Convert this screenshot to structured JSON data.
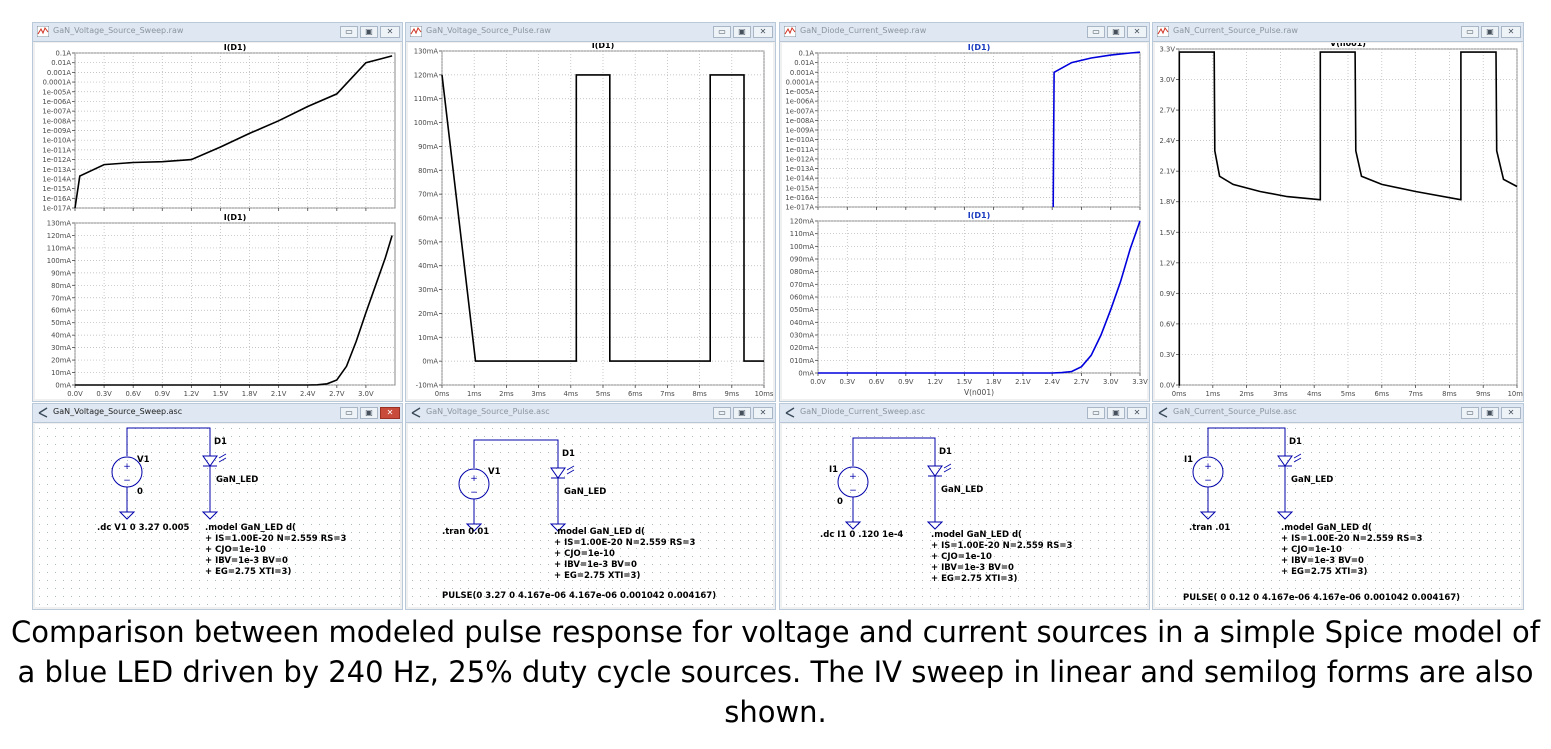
{
  "colors": {
    "trace_black": "#000000",
    "trace_blue": "#0000dd",
    "grid": "#b4b4b4",
    "title_blue": "#1a3ac0",
    "axis_text": "#4a4a4a"
  },
  "caption": "Comparison between modeled pulse response for voltage and current sources in a simple Spice model of a blue LED driven by 240 Hz, 25% duty cycle sources. The IV sweep in linear and semilog forms are also shown.",
  "windows": {
    "plot1": {
      "title": "GaN_Voltage_Source_Sweep.raw",
      "pane_top": {
        "trace": "I(D1)",
        "ylabels": [
          "0.1A",
          "0.01A",
          "0.001A",
          "0.0001A",
          "1e-005A",
          "1e-006A",
          "1e-007A",
          "1e-008A",
          "1e-009A",
          "1e-010A",
          "1e-011A",
          "1e-012A",
          "1e-013A",
          "1e-014A",
          "1e-015A",
          "1e-016A",
          "1e-017A"
        ]
      },
      "pane_bottom": {
        "trace": "I(D1)",
        "ylabels": [
          "130mA",
          "120mA",
          "110mA",
          "100mA",
          "90mA",
          "80mA",
          "70mA",
          "60mA",
          "50mA",
          "40mA",
          "30mA",
          "20mA",
          "10mA",
          "0mA"
        ]
      },
      "xlabels": [
        "0.0V",
        "0.3V",
        "0.6V",
        "0.9V",
        "1.2V",
        "1.5V",
        "1.8V",
        "2.1V",
        "2.4V",
        "2.7V",
        "3.0V"
      ]
    },
    "plot2": {
      "title": "GaN_Voltage_Source_Pulse.raw",
      "pane": {
        "trace": "I(D1)",
        "ylabels": [
          "130mA",
          "120mA",
          "110mA",
          "100mA",
          "90mA",
          "80mA",
          "70mA",
          "60mA",
          "50mA",
          "40mA",
          "30mA",
          "20mA",
          "10mA",
          "0mA",
          "-10mA"
        ]
      },
      "xlabels": [
        "0ms",
        "1ms",
        "2ms",
        "3ms",
        "4ms",
        "5ms",
        "6ms",
        "7ms",
        "8ms",
        "9ms",
        "10ms"
      ]
    },
    "plot3": {
      "title": "GaN_Diode_Current_Sweep.raw",
      "pane_top": {
        "trace": "I(D1)",
        "ylabels": [
          "0.1A",
          "0.01A",
          "0.001A",
          "0.0001A",
          "1e-005A",
          "1e-006A",
          "1e-007A",
          "1e-008A",
          "1e-009A",
          "1e-010A",
          "1e-011A",
          "1e-012A",
          "1e-013A",
          "1e-014A",
          "1e-015A",
          "1e-016A",
          "1e-017A"
        ]
      },
      "pane_bottom": {
        "trace": "I(D1)",
        "ylabels": [
          "120mA",
          "110mA",
          "100mA",
          "090mA",
          "080mA",
          "070mA",
          "060mA",
          "050mA",
          "040mA",
          "030mA",
          "020mA",
          "010mA",
          "0mA"
        ]
      },
      "xlabels": [
        "0.0V",
        "0.3V",
        "0.6V",
        "0.9V",
        "1.2V",
        "1.5V",
        "1.8V",
        "2.1V",
        "2.4V",
        "2.7V",
        "3.0V",
        "3.3V"
      ],
      "xaxis_title": "V(n001)"
    },
    "plot4": {
      "title": "GaN_Current_Source_Pulse.raw",
      "pane": {
        "trace": "V(n001)",
        "ylabels": [
          "3.3V",
          "3.0V",
          "2.7V",
          "2.4V",
          "2.1V",
          "1.8V",
          "1.5V",
          "1.2V",
          "0.9V",
          "0.6V",
          "0.3V",
          "0.0V"
        ]
      },
      "xlabels": [
        "0ms",
        "1ms",
        "2ms",
        "3ms",
        "4ms",
        "5ms",
        "6ms",
        "7ms",
        "8ms",
        "9ms",
        "10ms"
      ]
    },
    "schem1": {
      "title": "GaN_Voltage_Source_Sweep.asc",
      "source_name": "V1",
      "source_value": "0",
      "diode_name": "D1",
      "diode_model": "GaN_LED",
      "directive": ".dc V1 0 3.27 0.005",
      "model_lines": [
        ".model GaN_LED d(",
        "+ IS=1.00E-20 N=2.559 RS=3",
        "+ CJO=1e-10",
        "+ IBV=1e-3 BV=0",
        "+ EG=2.75 XTI=3)"
      ]
    },
    "schem2": {
      "title": "GaN_Voltage_Source_Pulse.asc",
      "source_name": "V1",
      "diode_name": "D1",
      "diode_model": "GaN_LED",
      "directive": ".tran 0.01",
      "model_lines": [
        ".model GaN_LED d(",
        "+ IS=1.00E-20 N=2.559 RS=3",
        "+ CJO=1e-10",
        "+ IBV=1e-3 BV=0",
        "+ EG=2.75 XTI=3)"
      ],
      "pulse": "PULSE(0 3.27 0 4.167e-06 4.167e-06 0.001042 0.004167)"
    },
    "schem3": {
      "title": "GaN_Diode_Current_Sweep.asc",
      "source_name": "I1",
      "source_value": "0",
      "diode_name": "D1",
      "diode_model": "GaN_LED",
      "directive": ".dc I1 0 .120 1e-4",
      "model_lines": [
        ".model GaN_LED d(",
        "+ IS=1.00E-20 N=2.559 RS=3",
        "+ CJO=1e-10",
        "+ IBV=1e-3 BV=0",
        "+ EG=2.75 XTI=3)"
      ]
    },
    "schem4": {
      "title": "GaN_Current_Source_Pulse.asc",
      "source_name": "I1",
      "diode_name": "D1",
      "diode_model": "GaN_LED",
      "directive": ".tran .01",
      "model_lines": [
        ".model GaN_LED d(",
        "+ IS=1.00E-20 N=2.559 RS=3",
        "+ CJO=1e-10",
        "+ IBV=1e-3 BV=0",
        "+ EG=2.75 XTI=3)"
      ],
      "pulse": "PULSE( 0 0.12 0 4.167e-06 4.167e-06 0.001042 0.004167)"
    }
  },
  "chart_data": [
    {
      "type": "line",
      "title": "I(D1)",
      "scale": "log",
      "x": [
        0.0,
        0.05,
        0.3,
        0.6,
        0.9,
        1.2,
        1.5,
        1.8,
        2.1,
        2.4,
        2.7,
        3.0,
        3.27
      ],
      "y": [
        1e-17,
        2e-14,
        3e-13,
        5e-13,
        6e-13,
        1e-12,
        2e-11,
        5e-10,
        1e-08,
        3e-07,
        6e-06,
        0.01,
        0.05
      ],
      "xlabel": "",
      "ylim": [
        "1e-017A",
        "0.1A"
      ],
      "grid": true
    },
    {
      "type": "line",
      "title": "I(D1)",
      "x": [
        0.0,
        2.4,
        2.5,
        2.6,
        2.7,
        2.8,
        2.9,
        3.0,
        3.1,
        3.2,
        3.27
      ],
      "y": [
        0,
        0,
        0.2,
        1,
        4,
        15,
        35,
        58,
        80,
        102,
        120
      ],
      "ylim": [
        0,
        130
      ],
      "unit": "mA",
      "grid": true
    },
    {
      "type": "line",
      "title": "I(D1)",
      "x_unit": "ms",
      "segments": [
        [
          0,
          0,
          120
        ],
        [
          1.04,
          4.17,
          0
        ],
        [
          4.17,
          5.21,
          120
        ],
        [
          5.21,
          8.33,
          0
        ],
        [
          8.33,
          9.38,
          120
        ],
        [
          9.38,
          10,
          0
        ]
      ],
      "ylim": [
        -10,
        130
      ],
      "unit": "mA",
      "grid": true
    },
    {
      "type": "line",
      "title": "I(D1)",
      "scale": "log",
      "x": [
        2.41,
        2.42,
        2.6,
        2.8,
        3.0,
        3.2,
        3.3
      ],
      "y": [
        1e-17,
        0.001,
        0.01,
        0.03,
        0.06,
        0.1,
        0.12
      ],
      "xlabel": "V(n001)",
      "ylim": [
        "1e-017A",
        "0.1A"
      ],
      "grid": true
    },
    {
      "type": "line",
      "title": "I(D1)",
      "x": [
        0.0,
        2.4,
        2.5,
        2.6,
        2.7,
        2.8,
        2.9,
        3.0,
        3.1,
        3.2,
        3.3
      ],
      "y": [
        0,
        0,
        0.3,
        1.2,
        5,
        14,
        30,
        50,
        72,
        98,
        120
      ],
      "xlabel": "V(n001)",
      "ylim": [
        0,
        120
      ],
      "unit": "mA",
      "grid": true
    },
    {
      "type": "line",
      "title": "V(n001)",
      "x_unit": "ms",
      "x": [
        0,
        0.01,
        1.04,
        1.06,
        1.2,
        1.6,
        2.4,
        3.2,
        4.17,
        4.18,
        5.21,
        5.23,
        5.4,
        6.0,
        7.0,
        8.33,
        8.34,
        9.38,
        9.4,
        9.6,
        10
      ],
      "y": [
        0,
        3.27,
        3.27,
        2.3,
        2.05,
        1.97,
        1.9,
        1.85,
        1.82,
        3.27,
        3.27,
        2.3,
        2.05,
        1.97,
        1.9,
        1.82,
        3.27,
        3.27,
        2.3,
        2.02,
        1.95
      ],
      "ylim": [
        0,
        3.3
      ],
      "unit": "V",
      "grid": true
    }
  ]
}
